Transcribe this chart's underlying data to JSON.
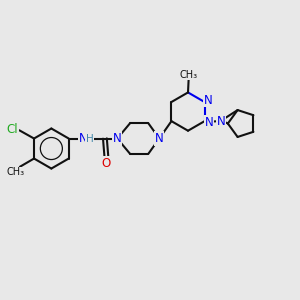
{
  "bg_color": "#e8e8e8",
  "bond_color": "#111111",
  "N_color": "#0000ee",
  "O_color": "#dd0000",
  "Cl_color": "#22aa22",
  "H_color": "#4488aa",
  "line_width": 1.5,
  "font_size": 8.5,
  "figsize": [
    3.0,
    3.0
  ],
  "dpi": 100,
  "xlim": [
    0,
    10
  ],
  "ylim": [
    0,
    10
  ]
}
